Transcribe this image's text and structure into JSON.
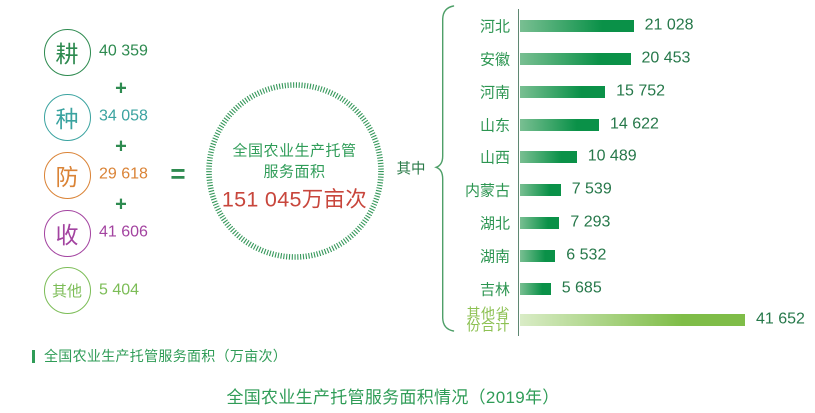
{
  "colors": {
    "green": "#2F9C57",
    "value_green": "#26784A",
    "plus_green": "#2E8B50",
    "total_red": "#C8463C",
    "bar_gradient_start": "#79BF92",
    "bar_gradient_end": "#0A9148",
    "other_bar_gradient_start": "#D9ECC6",
    "other_bar_gradient_end": "#7FBD48",
    "axis": "#5F8772",
    "brace": "#4E9F68"
  },
  "equation": {
    "terms": [
      {
        "label": "耕",
        "value": "40 359",
        "color": "#2D8A4F"
      },
      {
        "label": "种",
        "value": "34 058",
        "color": "#3AA3A0"
      },
      {
        "label": "防",
        "value": "29 618",
        "color": "#DA8336"
      },
      {
        "label": "收",
        "value": "41 606",
        "color": "#A343A0"
      },
      {
        "label": "其他",
        "value": "5 404",
        "color": "#7CBD57"
      }
    ],
    "operator_plus": "+",
    "operator_equals": "="
  },
  "total_circle": {
    "line1": "全国农业生产托管",
    "line2": "服务面积",
    "total": "151 045万亩次"
  },
  "among_label": "其中",
  "chart_data": {
    "type": "bar",
    "orientation": "horizontal",
    "title": "全国农业生产托管服务面积情况（2019年）",
    "legend": "全国农业生产托管服务面积（万亩次）",
    "unit": "万亩次",
    "year": "2019年",
    "total_label": "全国农业生产托管服务面积",
    "total_value": 151045,
    "components": {
      "耕": 40359,
      "种": 34058,
      "防": 29618,
      "收": 41606,
      "其他": 5404
    },
    "categories": [
      "河北",
      "安徽",
      "河南",
      "山东",
      "山西",
      "内蒙古",
      "湖北",
      "湖南",
      "吉林",
      "其他省份合计"
    ],
    "categories_display": [
      "河北",
      "安徽",
      "河南",
      "山东",
      "山西",
      "内蒙古",
      "湖北",
      "湖南",
      "吉林",
      "其他省\n份合计"
    ],
    "values": [
      21028,
      20453,
      15752,
      14622,
      10489,
      7539,
      7293,
      6532,
      5685,
      41652
    ],
    "value_labels": [
      "21 028",
      "20 453",
      "15 752",
      "14 622",
      "10 489",
      "7 539",
      "7 293",
      "6 532",
      "5 685",
      "41 652"
    ],
    "xlim": [
      0,
      45000
    ],
    "grid": false,
    "legend_position": "bottom-left"
  }
}
